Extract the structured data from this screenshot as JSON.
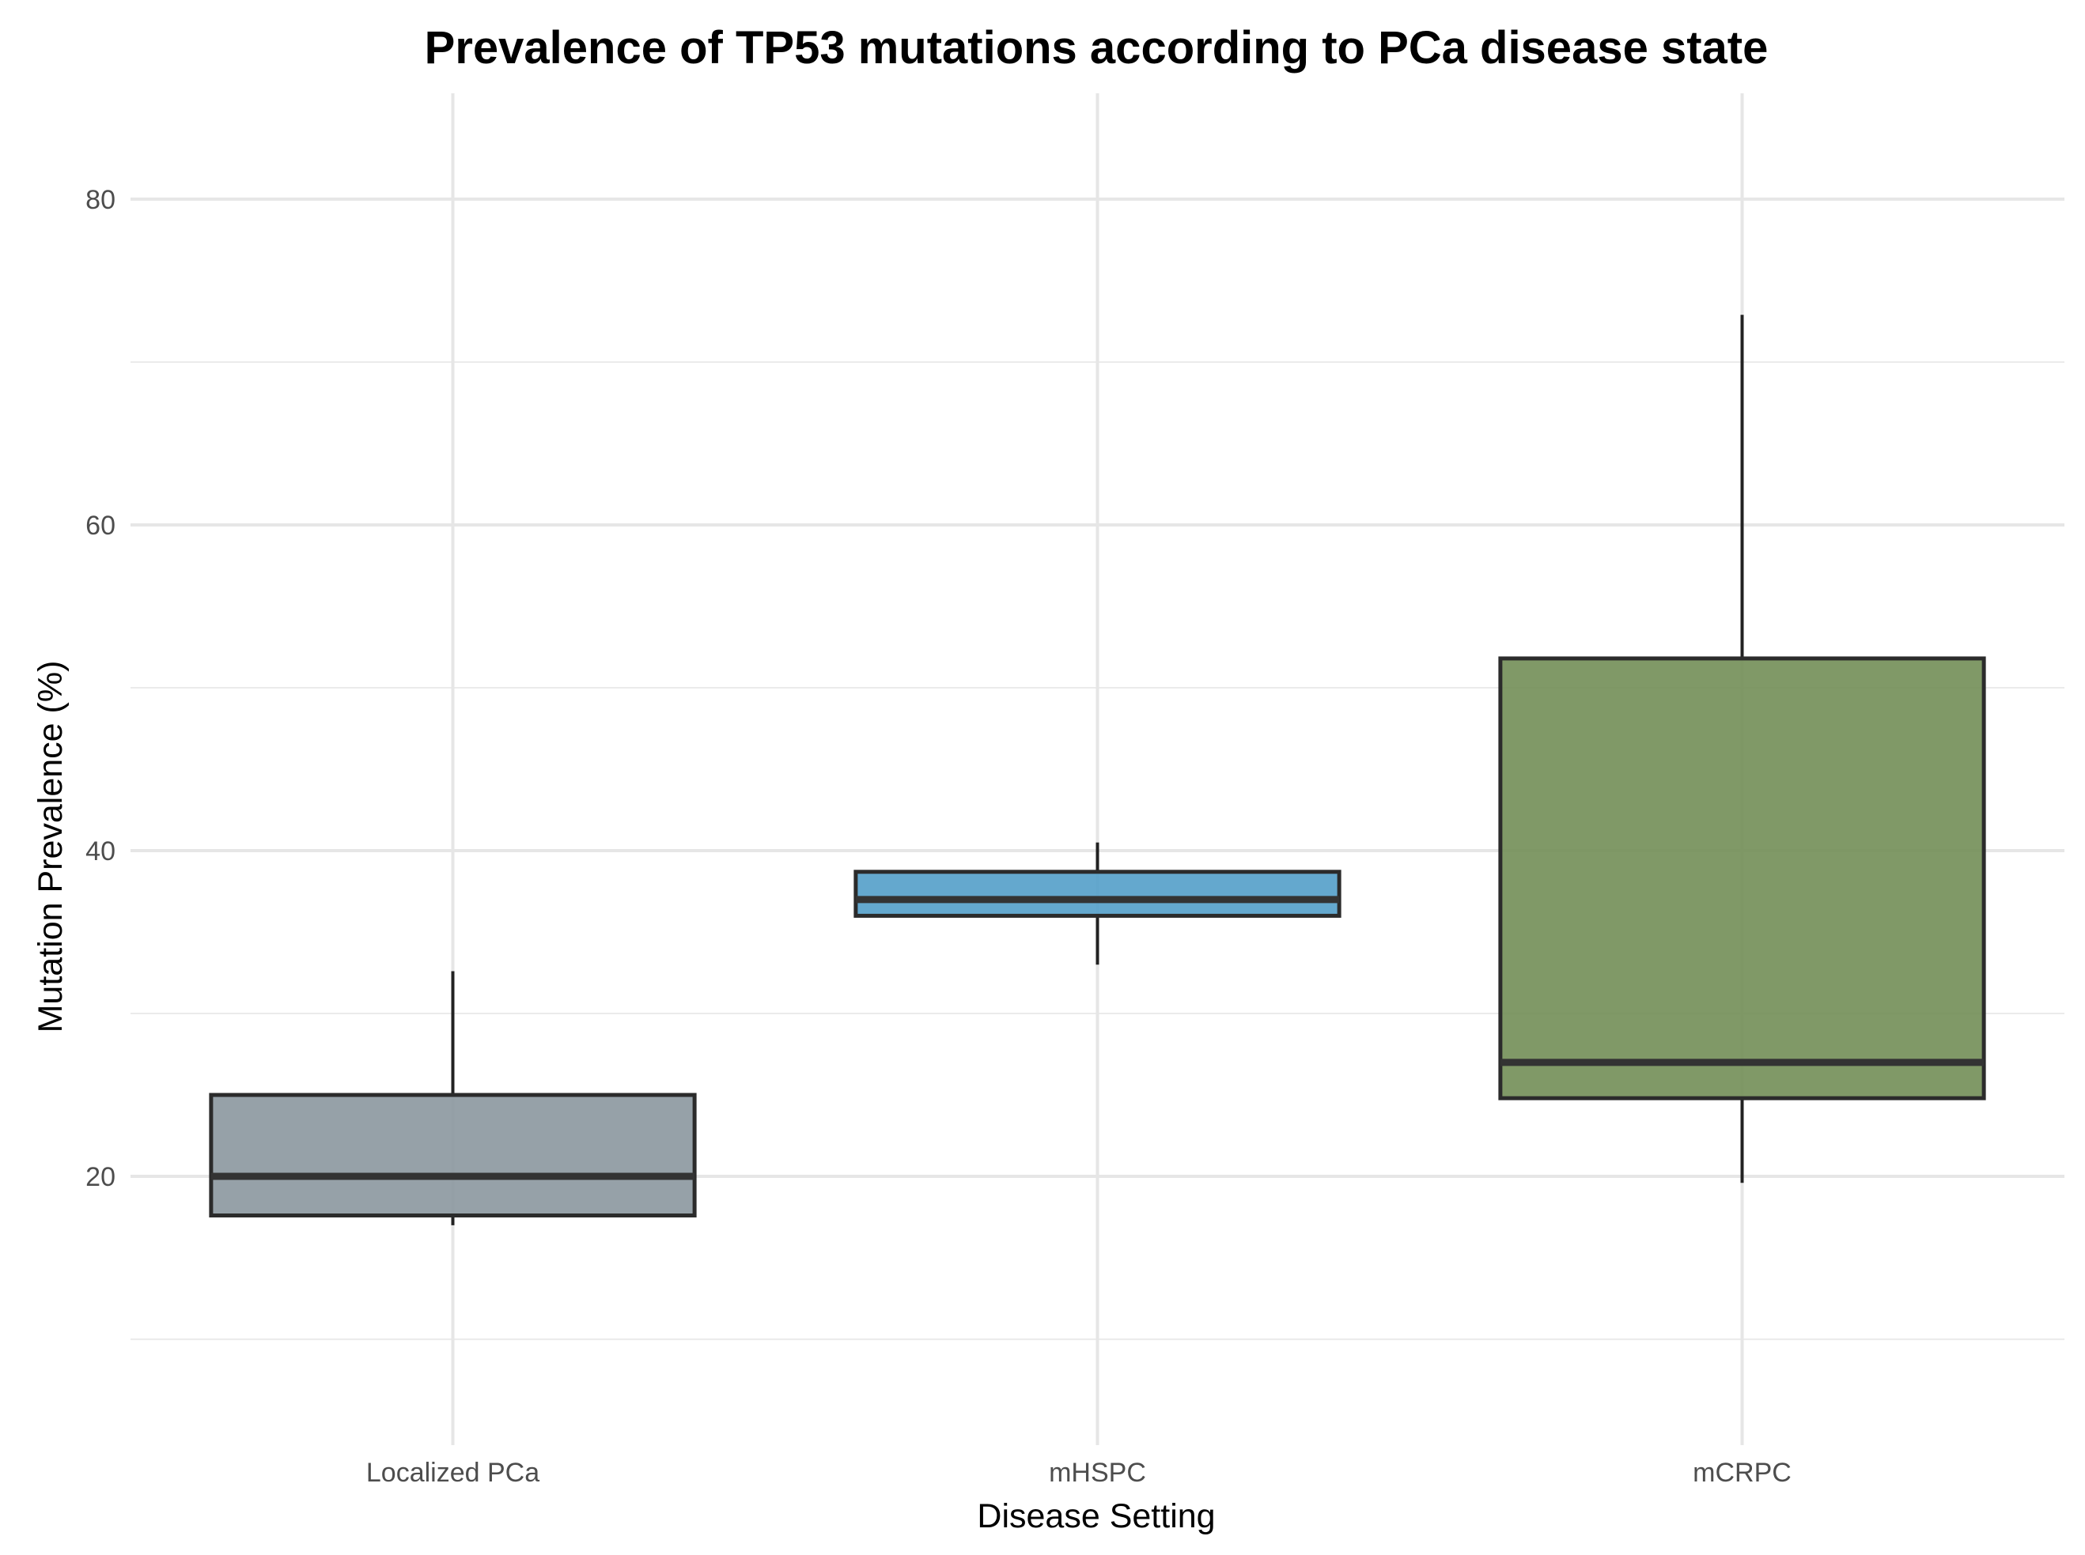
{
  "chart_data": {
    "type": "box",
    "title": "Prevalence of TP53 mutations according to PCa disease state",
    "xlabel": "Disease Setting",
    "ylabel": "Mutation Prevalence (%)",
    "ylim": [
      3.5,
      86.5
    ],
    "yticks": [
      20,
      40,
      60,
      80
    ],
    "ytick_labels": [
      "20",
      "40",
      "60",
      "80"
    ],
    "y_minor_gridlines": [
      10,
      30,
      50,
      70
    ],
    "grid": true,
    "legend": "none",
    "categories": [
      "Localized PCa",
      "mHSPC",
      "mCRPC"
    ],
    "boxes": [
      {
        "category": "Localized PCa",
        "whisker_low": 17.0,
        "q1": 17.6,
        "median": 20.0,
        "q3": 25.0,
        "whisker_high": 32.6,
        "color": "#8b979e"
      },
      {
        "category": "mHSPC",
        "whisker_low": 33.0,
        "q1": 36.0,
        "median": 37.0,
        "q3": 38.7,
        "whisker_high": 40.5,
        "color": "#539ec9"
      },
      {
        "category": "mCRPC",
        "whisker_low": 19.6,
        "q1": 24.8,
        "median": 27.0,
        "q3": 51.8,
        "whisker_high": 72.9,
        "color": "#728e56"
      }
    ]
  }
}
